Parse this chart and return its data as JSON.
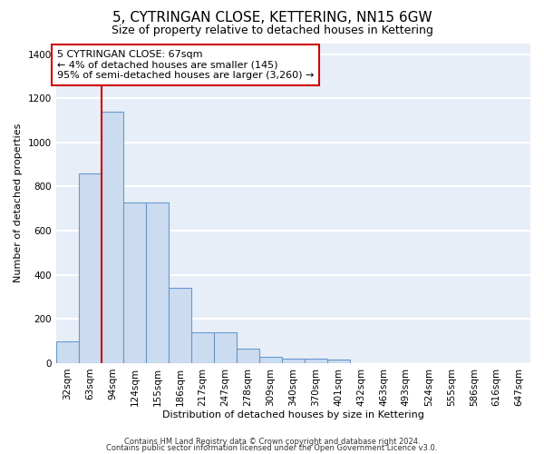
{
  "title": "5, CYTRINGAN CLOSE, KETTERING, NN15 6GW",
  "subtitle": "Size of property relative to detached houses in Kettering",
  "xlabel": "Distribution of detached houses by size in Kettering",
  "ylabel": "Number of detached properties",
  "categories": [
    "32sqm",
    "63sqm",
    "94sqm",
    "124sqm",
    "155sqm",
    "186sqm",
    "217sqm",
    "247sqm",
    "278sqm",
    "309sqm",
    "340sqm",
    "370sqm",
    "401sqm",
    "432sqm",
    "463sqm",
    "493sqm",
    "524sqm",
    "555sqm",
    "586sqm",
    "616sqm",
    "647sqm"
  ],
  "values": [
    100,
    860,
    1140,
    730,
    730,
    340,
    140,
    140,
    65,
    30,
    20,
    20,
    15,
    0,
    0,
    0,
    0,
    0,
    0,
    0,
    0
  ],
  "bar_color": "#ccdcf0",
  "bar_edge_color": "#6699cc",
  "ylim": [
    0,
    1450
  ],
  "yticks": [
    0,
    200,
    400,
    600,
    800,
    1000,
    1200,
    1400
  ],
  "property_line_x": 1.5,
  "property_line_color": "#cc0000",
  "annotation_text": "5 CYTRINGAN CLOSE: 67sqm\n← 4% of detached houses are smaller (145)\n95% of semi-detached houses are larger (3,260) →",
  "background_color": "#e8eef8",
  "grid_color": "#ffffff",
  "footer_line1": "Contains HM Land Registry data © Crown copyright and database right 2024.",
  "footer_line2": "Contains public sector information licensed under the Open Government Licence v3.0.",
  "title_fontsize": 11,
  "subtitle_fontsize": 9,
  "axis_label_fontsize": 8,
  "tick_fontsize": 7.5,
  "footer_fontsize": 6,
  "annotation_fontsize": 8
}
